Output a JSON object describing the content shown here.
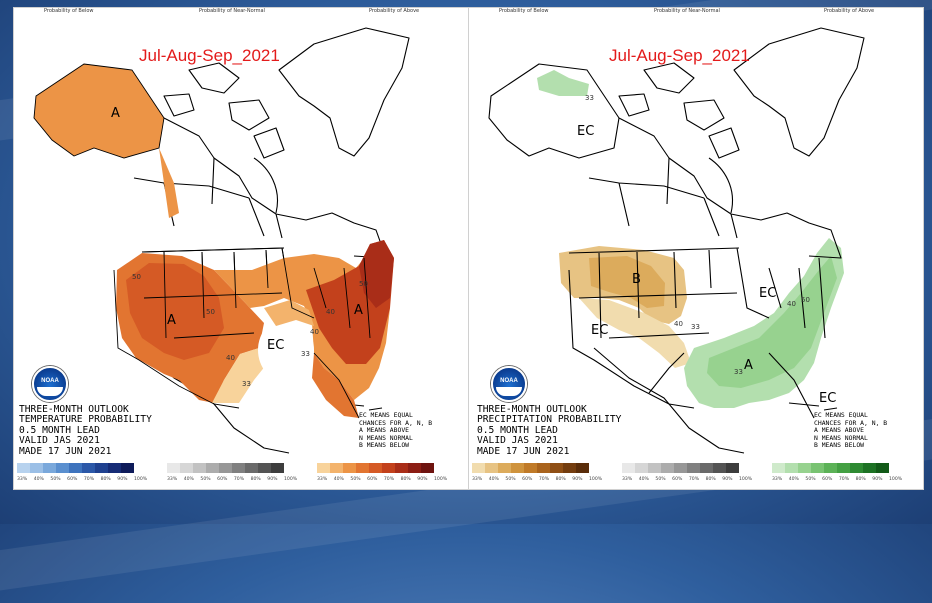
{
  "panels": [
    {
      "id": "temperature",
      "title": "Jul-Aug-Sep_2021",
      "prob_below": "Probability of Below",
      "prob_near_normal": "Probability of Near-Normal",
      "prob_above": "Probability of Above",
      "outlook": [
        "THREE-MONTH OUTLOOK",
        "TEMPERATURE PROBABILITY",
        "0.5 MONTH LEAD",
        "VALID JAS 2021",
        "MADE 17 JUN 2021"
      ],
      "legend": [
        "EC MEANS EQUAL",
        "CHANCES FOR A, N, B",
        "A MEANS ABOVE",
        "N MEANS NORMAL",
        "B MEANS BELOW"
      ],
      "map_letters": [
        "A",
        "A",
        "A",
        "EC"
      ],
      "isolines": [
        "50",
        "40",
        "33",
        "50",
        "40",
        "33",
        "40",
        "50"
      ],
      "logo_text": "NOAA",
      "scales": [
        {
          "name": "below",
          "colors": [
            "#b7d2ee",
            "#9bbfe6",
            "#7aa8db",
            "#5a8fcf",
            "#3e73bd",
            "#2c58a8",
            "#1f4190",
            "#162c76",
            "#0e1b5a"
          ]
        },
        {
          "name": "near-normal",
          "colors": [
            "#e8e8e8",
            "#d6d6d6",
            "#c2c2c2",
            "#acacac",
            "#979797",
            "#808080",
            "#6a6a6a",
            "#545454",
            "#3d3d3d"
          ]
        },
        {
          "name": "above",
          "colors": [
            "#f8d39b",
            "#f3b36c",
            "#ec9446",
            "#e27531",
            "#d55a25",
            "#c3411c",
            "#a92d18",
            "#8c1e14",
            "#6e130f"
          ]
        }
      ],
      "scale_ticks": [
        [
          "33%",
          "40%",
          "50%",
          "60%",
          "70%",
          "80%",
          "90%",
          "100%"
        ],
        [
          "33%",
          "40%",
          "50%",
          "60%",
          "70%",
          "80%",
          "90%",
          "100%"
        ],
        [
          "33%",
          "40%",
          "50%",
          "60%",
          "70%",
          "80%",
          "90%",
          "100%"
        ]
      ]
    },
    {
      "id": "precipitation",
      "title": "Jul-Aug-Sep_2021",
      "prob_below": "Probability of Below",
      "prob_near_normal": "Probability of Near-Normal",
      "prob_above": "Probability of Above",
      "outlook": [
        "THREE-MONTH OUTLOOK",
        "PRECIPITATION PROBABILITY",
        "0.5 MONTH LEAD",
        "VALID JAS 2021",
        "MADE 17 JUN 2021"
      ],
      "legend": [
        "EC MEANS EQUAL",
        "CHANCES FOR A, N, B",
        "A MEANS ABOVE",
        "N MEANS NORMAL",
        "B MEANS BELOW"
      ],
      "map_letters": [
        "EC",
        "B",
        "EC",
        "EC",
        "A",
        "EC"
      ],
      "isolines": [
        "33",
        "40",
        "33",
        "33",
        "40",
        "50"
      ],
      "logo_text": "NOAA",
      "scales": [
        {
          "name": "below",
          "colors": [
            "#f1dcae",
            "#e7c383",
            "#dcab5c",
            "#cf933d",
            "#c07a28",
            "#a9631c",
            "#8f4f15",
            "#743d0f",
            "#5a2d0a"
          ]
        },
        {
          "name": "near-normal",
          "colors": [
            "#e8e8e8",
            "#d6d6d6",
            "#c2c2c2",
            "#acacac",
            "#979797",
            "#808080",
            "#6a6a6a",
            "#545454",
            "#3d3d3d"
          ]
        },
        {
          "name": "above",
          "colors": [
            "#cfeacb",
            "#b3dfae",
            "#97d28f",
            "#79c372",
            "#5cb257",
            "#44a043",
            "#2e8a32",
            "#1d7224",
            "#125a18"
          ]
        }
      ],
      "scale_ticks": [
        [
          "33%",
          "40%",
          "50%",
          "60%",
          "70%",
          "80%",
          "90%",
          "100%"
        ],
        [
          "33%",
          "40%",
          "50%",
          "60%",
          "70%",
          "80%",
          "90%",
          "100%"
        ],
        [
          "33%",
          "40%",
          "50%",
          "60%",
          "70%",
          "80%",
          "90%",
          "100%"
        ]
      ]
    }
  ]
}
